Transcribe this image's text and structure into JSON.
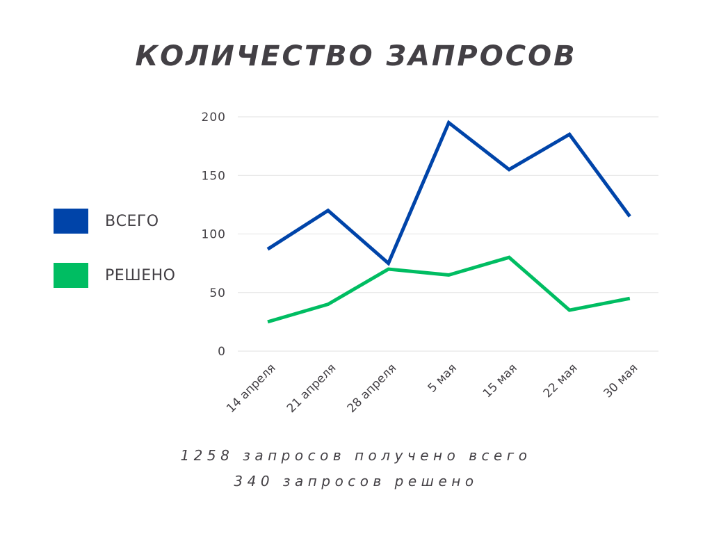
{
  "title": "КОЛИЧЕСТВО ЗАПРОСОВ",
  "legend": {
    "items": [
      {
        "label": "ВСЕГО",
        "color": "#0044a9"
      },
      {
        "label": "РЕШЕНО",
        "color": "#00bd62"
      }
    ]
  },
  "footer": {
    "line1": "1258 запросов получено всего",
    "line2": "340 запросов решено"
  },
  "chart_data": {
    "type": "line",
    "title": "КОЛИЧЕСТВО ЗАПРОСОВ",
    "xlabel": "",
    "ylabel": "",
    "categories": [
      "14 апреля",
      "21 апреля",
      "28 апреля",
      "5 мая",
      "15 мая",
      "22 мая",
      "30 мая"
    ],
    "ylim": [
      0,
      200
    ],
    "yticks": [
      "0",
      "50",
      "100",
      "150",
      "200"
    ],
    "grid": true,
    "legend_position": "left",
    "series": [
      {
        "name": "ВСЕГО",
        "color": "#0044a9",
        "values": [
          87,
          120,
          75,
          195,
          155,
          185,
          115
        ]
      },
      {
        "name": "РЕШЕНО",
        "color": "#00bd62",
        "values": [
          25,
          40,
          70,
          65,
          80,
          35,
          45
        ]
      }
    ]
  }
}
